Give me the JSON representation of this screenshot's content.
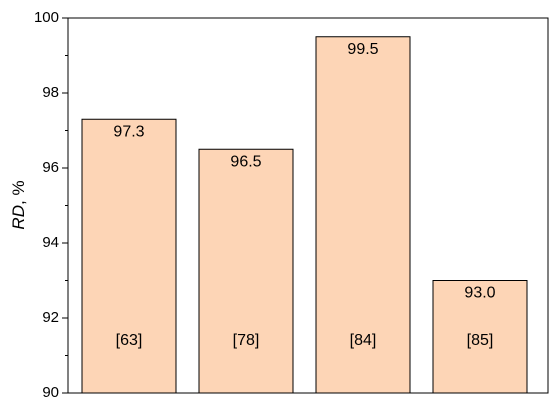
{
  "chart_data": {
    "type": "bar",
    "ylabel_var": "RD",
    "ylabel_unit": ", %",
    "categories": [
      "[63]",
      "[78]",
      "[84]",
      "[85]"
    ],
    "values": [
      97.3,
      96.5,
      99.5,
      93.0
    ],
    "value_labels": [
      "97.3",
      "96.5",
      "99.5",
      "93.0"
    ],
    "color": "#fdd5b6",
    "ylim": [
      90,
      100
    ],
    "yticks": [
      90,
      92,
      94,
      96,
      98,
      100
    ],
    "minor_yticks": [
      91,
      93,
      95,
      97,
      99
    ],
    "grid": false
  }
}
